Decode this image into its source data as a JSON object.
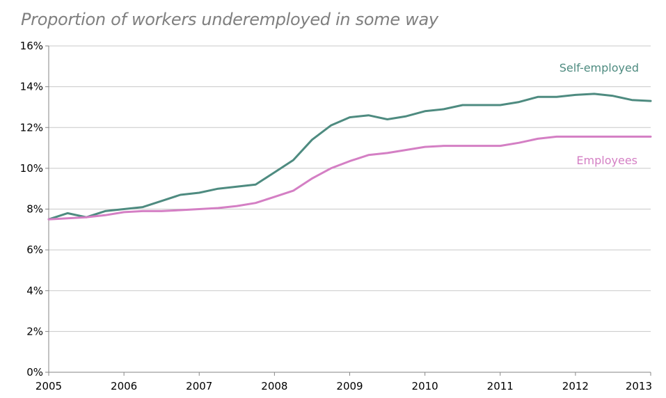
{
  "chart_data": {
    "type": "line",
    "title": "Proportion of workers underemployed in some way",
    "xlabel": "",
    "ylabel": "",
    "x_ticks": [
      "2005",
      "2006",
      "2007",
      "2008",
      "2009",
      "2010",
      "2011",
      "2012",
      "2013"
    ],
    "y_ticks": [
      "0%",
      "2%",
      "4%",
      "6%",
      "8%",
      "10%",
      "12%",
      "14%",
      "16%"
    ],
    "xlim": [
      2005,
      2013
    ],
    "ylim": [
      0,
      16
    ],
    "grid": "horizontal",
    "legend": "inline labels",
    "series": [
      {
        "name": "Self-employed",
        "color": "#4e8b80",
        "x": [
          2005.0,
          2005.25,
          2005.5,
          2005.75,
          2006.0,
          2006.25,
          2006.5,
          2006.75,
          2007.0,
          2007.25,
          2007.5,
          2007.75,
          2008.0,
          2008.25,
          2008.5,
          2008.75,
          2009.0,
          2009.25,
          2009.5,
          2009.75,
          2010.0,
          2010.25,
          2010.5,
          2010.75,
          2011.0,
          2011.25,
          2011.5,
          2011.75,
          2012.0,
          2012.25,
          2012.5,
          2012.75,
          2013.0
        ],
        "values": [
          7.5,
          7.8,
          7.6,
          7.9,
          8.0,
          8.1,
          8.4,
          8.7,
          8.8,
          9.0,
          9.1,
          9.2,
          9.8,
          10.4,
          11.4,
          12.1,
          12.5,
          12.6,
          12.4,
          12.55,
          12.8,
          12.9,
          13.1,
          13.1,
          13.1,
          13.25,
          13.5,
          13.5,
          13.6,
          13.65,
          13.55,
          13.35,
          13.3
        ]
      },
      {
        "name": "Employees",
        "color": "#d47fc4",
        "x": [
          2005.0,
          2005.25,
          2005.5,
          2005.75,
          2006.0,
          2006.25,
          2006.5,
          2006.75,
          2007.0,
          2007.25,
          2007.5,
          2007.75,
          2008.0,
          2008.25,
          2008.5,
          2008.75,
          2009.0,
          2009.25,
          2009.5,
          2009.75,
          2010.0,
          2010.25,
          2010.5,
          2010.75,
          2011.0,
          2011.25,
          2011.5,
          2011.75,
          2012.0,
          2012.25,
          2012.5,
          2012.75,
          2013.0
        ],
        "values": [
          7.5,
          7.55,
          7.6,
          7.7,
          7.85,
          7.9,
          7.9,
          7.95,
          8.0,
          8.05,
          8.15,
          8.3,
          8.6,
          8.9,
          9.5,
          10.0,
          10.35,
          10.65,
          10.75,
          10.9,
          11.05,
          11.1,
          11.1,
          11.1,
          11.1,
          11.25,
          11.45,
          11.55,
          11.55,
          11.55,
          11.55,
          11.55,
          11.55
        ]
      }
    ]
  }
}
